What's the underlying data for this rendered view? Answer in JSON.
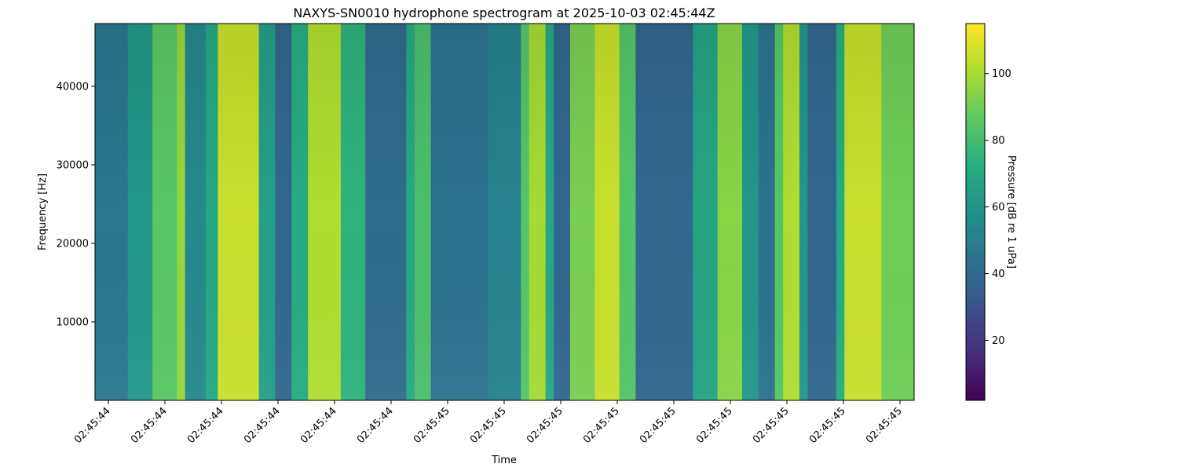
{
  "chart_data": {
    "type": "heatmap",
    "title": "NAXYS-SN0010 hydrophone spectrogram at 2025-10-03 02:45:44Z",
    "xlabel": "Time",
    "ylabel": "Frequency [Hz]",
    "ylim": [
      0,
      48000
    ],
    "y_ticks": [
      10000,
      20000,
      30000,
      40000
    ],
    "y_tick_labels": [
      "10000",
      "20000",
      "30000",
      "40000"
    ],
    "x_tick_labels": [
      "02:45:44",
      "02:45:44",
      "02:45:44",
      "02:45:44",
      "02:45:44",
      "02:45:44",
      "02:45:45",
      "02:45:45",
      "02:45:45",
      "02:45:45",
      "02:45:45",
      "02:45:45",
      "02:45:45",
      "02:45:45",
      "02:45:45"
    ],
    "colorbar": {
      "label": "Pressure [dB re 1 uPa]",
      "range": [
        2,
        115
      ],
      "ticks": [
        20,
        40,
        60,
        80,
        100
      ],
      "tick_labels": [
        "20",
        "40",
        "60",
        "80",
        "100"
      ],
      "colormap": "viridis"
    },
    "time_bands_db": [
      {
        "t_start": 0.0,
        "t_end": 0.04,
        "level": 47
      },
      {
        "t_start": 0.04,
        "t_end": 0.07,
        "level": 62
      },
      {
        "t_start": 0.07,
        "t_end": 0.1,
        "level": 86
      },
      {
        "t_start": 0.1,
        "t_end": 0.11,
        "level": 97
      },
      {
        "t_start": 0.11,
        "t_end": 0.135,
        "level": 55
      },
      {
        "t_start": 0.135,
        "t_end": 0.15,
        "level": 70
      },
      {
        "t_start": 0.15,
        "t_end": 0.2,
        "level": 106
      },
      {
        "t_start": 0.2,
        "t_end": 0.22,
        "level": 66
      },
      {
        "t_start": 0.22,
        "t_end": 0.24,
        "level": 40
      },
      {
        "t_start": 0.24,
        "t_end": 0.26,
        "level": 72
      },
      {
        "t_start": 0.26,
        "t_end": 0.3,
        "level": 102
      },
      {
        "t_start": 0.3,
        "t_end": 0.33,
        "level": 75
      },
      {
        "t_start": 0.33,
        "t_end": 0.38,
        "level": 42
      },
      {
        "t_start": 0.38,
        "t_end": 0.39,
        "level": 70
      },
      {
        "t_start": 0.39,
        "t_end": 0.41,
        "level": 82
      },
      {
        "t_start": 0.41,
        "t_end": 0.48,
        "level": 45
      },
      {
        "t_start": 0.48,
        "t_end": 0.52,
        "level": 52
      },
      {
        "t_start": 0.52,
        "t_end": 0.53,
        "level": 85
      },
      {
        "t_start": 0.53,
        "t_end": 0.55,
        "level": 100
      },
      {
        "t_start": 0.55,
        "t_end": 0.56,
        "level": 70
      },
      {
        "t_start": 0.56,
        "t_end": 0.58,
        "level": 40
      },
      {
        "t_start": 0.58,
        "t_end": 0.61,
        "level": 92
      },
      {
        "t_start": 0.61,
        "t_end": 0.64,
        "level": 106
      },
      {
        "t_start": 0.64,
        "t_end": 0.66,
        "level": 85
      },
      {
        "t_start": 0.66,
        "t_end": 0.73,
        "level": 40
      },
      {
        "t_start": 0.73,
        "t_end": 0.76,
        "level": 68
      },
      {
        "t_start": 0.76,
        "t_end": 0.79,
        "level": 95
      },
      {
        "t_start": 0.79,
        "t_end": 0.81,
        "level": 62
      },
      {
        "t_start": 0.81,
        "t_end": 0.83,
        "level": 45
      },
      {
        "t_start": 0.83,
        "t_end": 0.84,
        "level": 85
      },
      {
        "t_start": 0.84,
        "t_end": 0.86,
        "level": 102
      },
      {
        "t_start": 0.86,
        "t_end": 0.87,
        "level": 62
      },
      {
        "t_start": 0.87,
        "t_end": 0.905,
        "level": 40
      },
      {
        "t_start": 0.905,
        "t_end": 0.915,
        "level": 72
      },
      {
        "t_start": 0.915,
        "t_end": 0.96,
        "level": 106
      },
      {
        "t_start": 0.96,
        "t_end": 1.0,
        "level": 90
      }
    ]
  }
}
